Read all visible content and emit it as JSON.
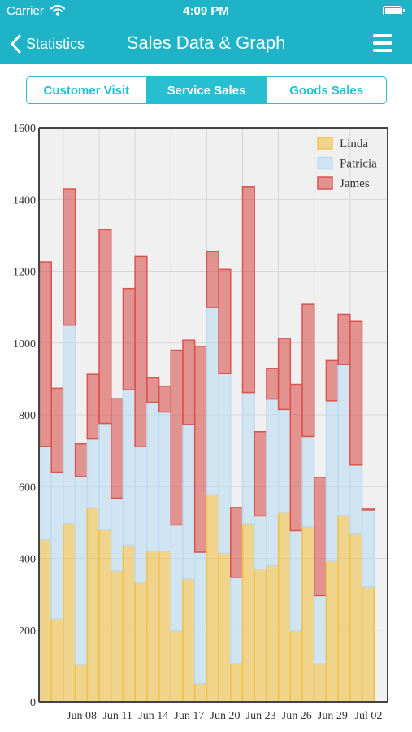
{
  "status": {
    "carrier": "Carrier",
    "time": "4:09 PM"
  },
  "nav": {
    "back_label": "Statistics",
    "title": "Sales Data & Graph"
  },
  "tabs": [
    {
      "label": "Customer Visit",
      "active": false
    },
    {
      "label": "Service Sales",
      "active": true
    },
    {
      "label": "Goods Sales",
      "active": false
    }
  ],
  "colors": {
    "accent": "#1fb3c7",
    "linda": "#f0c24a",
    "patricia": "#bcdcf3",
    "james": "#d9534f"
  },
  "chart_data": {
    "type": "bar",
    "stacked": true,
    "ylim": [
      0,
      1600
    ],
    "yticks": [
      0,
      200,
      400,
      600,
      800,
      1000,
      1200,
      1400,
      1600
    ],
    "grid": true,
    "legend_position": "top-right",
    "x_tick_labels": [
      "Jun 08",
      "Jun 11",
      "Jun 14",
      "Jun 17",
      "Jun 20",
      "Jun 23",
      "Jun 26",
      "Jun 29",
      "Jul 02"
    ],
    "series": [
      {
        "name": "Linda",
        "color": "#f0c24a",
        "values": [
          452,
          232,
          498,
          104,
          541,
          480,
          365,
          437,
          333,
          420,
          420,
          197,
          343,
          51,
          577,
          415,
          107,
          497,
          370,
          380,
          528,
          197,
          488,
          106,
          393,
          520,
          470,
          320
        ]
      },
      {
        "name": "Patricia",
        "color": "#bcdcf3",
        "values": [
          260,
          408,
          552,
          524,
          192,
          296,
          203,
          433,
          378,
          415,
          388,
          296,
          430,
          366,
          522,
          500,
          240,
          365,
          148,
          464,
          287,
          280,
          252,
          190,
          446,
          420,
          190,
          215
        ]
      },
      {
        "name": "James",
        "color": "#d9534f",
        "values": [
          514,
          234,
          380,
          91,
          180,
          540,
          277,
          282,
          530,
          68,
          72,
          487,
          235,
          574,
          156,
          290,
          195,
          573,
          235,
          85,
          198,
          408,
          368,
          330,
          112,
          140,
          400,
          5
        ]
      }
    ]
  }
}
